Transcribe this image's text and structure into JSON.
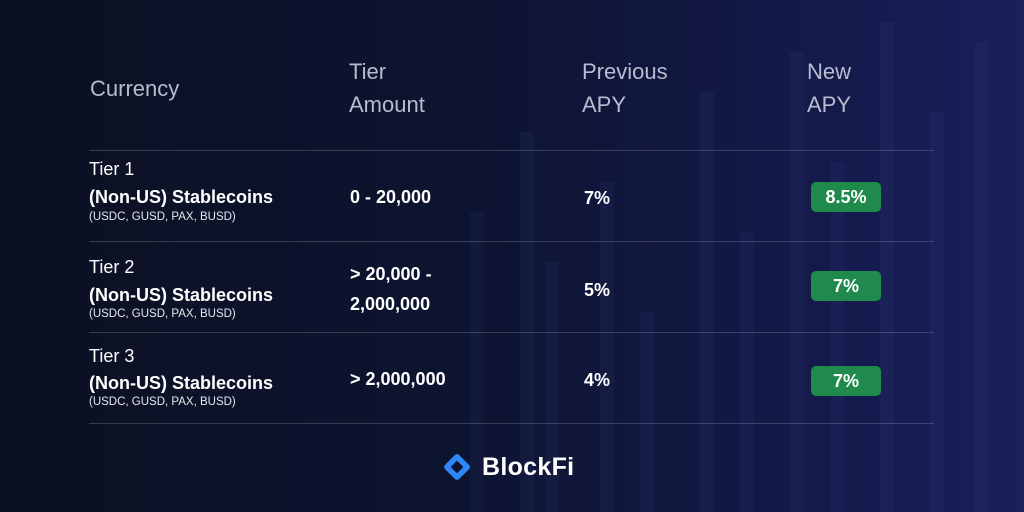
{
  "table": {
    "headers": {
      "currency": "Currency",
      "tier_amount": [
        "Tier",
        "Amount"
      ],
      "previous_apy": [
        "Previous",
        "APY"
      ],
      "new_apy": [
        "New",
        "APY"
      ]
    },
    "rows": [
      {
        "tier": "Tier 1",
        "currency": "(Non-US) Stablecoins",
        "coins": "(USDC, GUSD, PAX, BUSD)",
        "amount": [
          "0 - 20,000"
        ],
        "previous_apy": "7%",
        "new_apy": "8.5%"
      },
      {
        "tier": "Tier 2",
        "currency": "(Non-US) Stablecoins",
        "coins": "(USDC, GUSD, PAX, BUSD)",
        "amount": [
          "> 20,000 -",
          "2,000,000"
        ],
        "previous_apy": "5%",
        "new_apy": "7%"
      },
      {
        "tier": "Tier 3",
        "currency": "(Non-US) Stablecoins",
        "coins": "(USDC, GUSD, PAX, BUSD)",
        "amount": [
          "> 2,000,000"
        ],
        "previous_apy": "4%",
        "new_apy": "7%"
      }
    ]
  },
  "brand": {
    "name": "BlockFi",
    "icon": "blockfi-logo-icon"
  },
  "colors": {
    "badge": "#1f8a4c",
    "logo": "#2f86f6",
    "header_text": "#b7bccf"
  }
}
